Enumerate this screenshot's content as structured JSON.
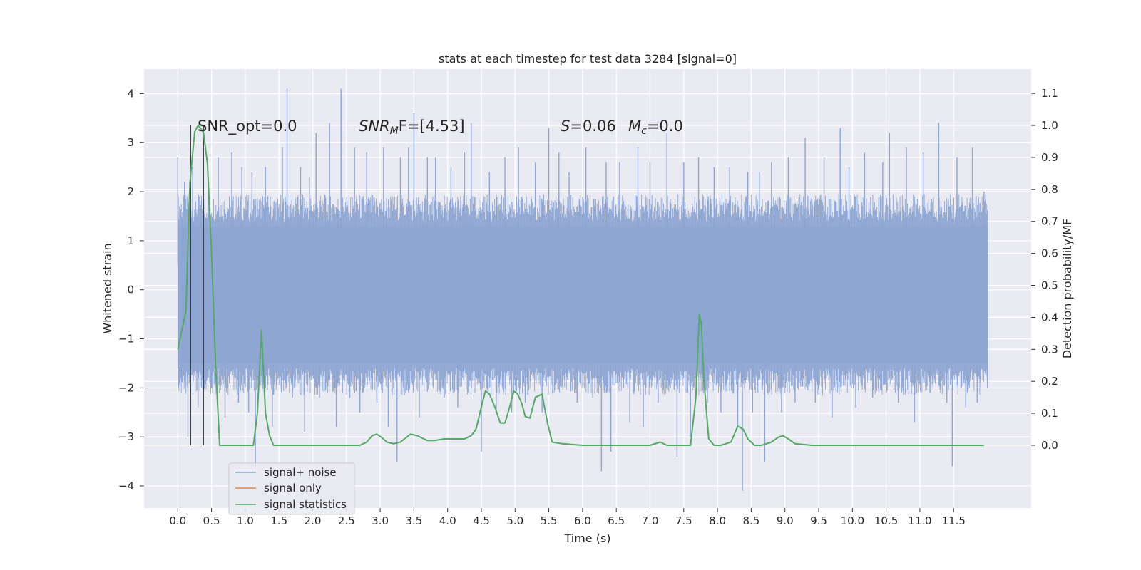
{
  "chart_data": {
    "type": "line",
    "title": "stats at each timestep for test data 3284 [signal=0]",
    "xlabel": "Time (s)",
    "ylabel": "Whitened strain",
    "y2label": "Detection probability/MF",
    "xlim": [
      -0.5,
      12.65
    ],
    "ylim": [
      -4.45,
      4.5
    ],
    "y2lim": [
      -0.196,
      1.176
    ],
    "x_ticks": [
      0.0,
      0.5,
      1.0,
      1.5,
      2.0,
      2.5,
      3.0,
      3.5,
      4.0,
      4.5,
      5.0,
      5.5,
      6.0,
      6.5,
      7.0,
      7.5,
      8.0,
      8.5,
      9.0,
      9.5,
      10.0,
      10.5,
      11.0,
      11.5
    ],
    "x_tick_labels": [
      "0.0",
      "0.5",
      "1.0",
      "1.5",
      "2.0",
      "2.5",
      "3.0",
      "3.5",
      "4.0",
      "4.5",
      "5.0",
      "5.5",
      "6.0",
      "6.5",
      "7.0",
      "7.5",
      "8.0",
      "8.5",
      "9.0",
      "9.5",
      "10.0",
      "10.5",
      "11.0",
      "11.5"
    ],
    "y_ticks": [
      4,
      3,
      2,
      1,
      0,
      -1,
      -2,
      -3,
      -4
    ],
    "y_tick_labels": [
      "4",
      "3",
      "2",
      "1",
      "0",
      "−1",
      "−2",
      "−3",
      "−4"
    ],
    "y2_ticks": [
      1.1,
      1.0,
      0.9,
      0.8,
      0.7,
      0.6,
      0.5,
      0.4,
      0.3,
      0.2,
      0.1,
      0.0
    ],
    "y2_tick_labels": [
      "1.1",
      "1.0",
      "0.9",
      "0.8",
      "0.7",
      "0.6",
      "0.5",
      "0.4",
      "0.3",
      "0.2",
      "0.1",
      "0.0"
    ],
    "grid": true,
    "legend_position": "lower-left",
    "annotations": {
      "snr_opt": "SNR_opt=0.0",
      "snr_mf_sym": "SNR",
      "snr_mf_sub": "M",
      "snr_mf_rest": "F=[4.53]",
      "s_sym": "S",
      "s_rest": "=0.06",
      "mc_sym": "M",
      "mc_sub": "c",
      "mc_rest": "=0.0"
    },
    "vertical_markers_x": [
      0.19,
      0.38
    ],
    "series": [
      {
        "name": "signal+ noise",
        "color": "#8fa6d2",
        "axis": "left",
        "x_range": [
          0.0,
          12.0
        ],
        "envelope_upper": 1.3,
        "envelope_lower": -1.5,
        "spikes": [
          [
            0.0,
            2.7
          ],
          [
            0.05,
            -1.6
          ],
          [
            0.1,
            2.2
          ],
          [
            0.15,
            -3.0
          ],
          [
            0.22,
            2.5
          ],
          [
            0.3,
            -2.4
          ],
          [
            0.45,
            2.2
          ],
          [
            0.5,
            -2.0
          ],
          [
            0.6,
            2.7
          ],
          [
            0.7,
            -2.6
          ],
          [
            0.8,
            2.8
          ],
          [
            0.9,
            -2.3
          ],
          [
            0.95,
            2.5
          ],
          [
            1.05,
            -2.5
          ],
          [
            1.1,
            2.4
          ],
          [
            1.15,
            -3.6
          ],
          [
            1.3,
            2.5
          ],
          [
            1.4,
            -2.8
          ],
          [
            1.55,
            2.9
          ],
          [
            1.62,
            4.1
          ],
          [
            1.7,
            -2.2
          ],
          [
            1.82,
            2.5
          ],
          [
            1.88,
            -2.9
          ],
          [
            1.95,
            2.3
          ],
          [
            2.05,
            3.2
          ],
          [
            2.1,
            -2.2
          ],
          [
            2.25,
            3.4
          ],
          [
            2.35,
            -2.8
          ],
          [
            2.42,
            4.1
          ],
          [
            2.55,
            -2.2
          ],
          [
            2.62,
            2.9
          ],
          [
            2.7,
            -2.5
          ],
          [
            2.8,
            2.8
          ],
          [
            2.95,
            -2.3
          ],
          [
            3.05,
            2.9
          ],
          [
            3.12,
            -2.8
          ],
          [
            3.25,
            -3.5
          ],
          [
            3.3,
            2.7
          ],
          [
            3.42,
            2.9
          ],
          [
            3.5,
            3.6
          ],
          [
            3.58,
            -2.6
          ],
          [
            3.7,
            2.7
          ],
          [
            3.82,
            2.7
          ],
          [
            3.95,
            -2.2
          ],
          [
            4.05,
            2.5
          ],
          [
            4.15,
            -2.4
          ],
          [
            4.25,
            2.8
          ],
          [
            4.35,
            3.4
          ],
          [
            4.5,
            -3.3
          ],
          [
            4.62,
            2.4
          ],
          [
            4.72,
            -2.5
          ],
          [
            4.85,
            2.7
          ],
          [
            4.95,
            -2.5
          ],
          [
            5.05,
            2.9
          ],
          [
            5.15,
            -2.3
          ],
          [
            5.3,
            2.6
          ],
          [
            5.4,
            -2.5
          ],
          [
            5.5,
            3.3
          ],
          [
            5.65,
            2.8
          ],
          [
            5.8,
            2.4
          ],
          [
            5.92,
            -2.3
          ],
          [
            6.05,
            2.9
          ],
          [
            6.15,
            -2.2
          ],
          [
            6.28,
            -3.7
          ],
          [
            6.35,
            2.6
          ],
          [
            6.42,
            -3.3
          ],
          [
            6.55,
            2.6
          ],
          [
            6.7,
            -2.7
          ],
          [
            6.82,
            2.9
          ],
          [
            6.9,
            -2.8
          ],
          [
            7.0,
            2.6
          ],
          [
            7.12,
            -2.3
          ],
          [
            7.25,
            3.2
          ],
          [
            7.4,
            -3.4
          ],
          [
            7.5,
            2.6
          ],
          [
            7.6,
            -3.0
          ],
          [
            7.72,
            2.7
          ],
          [
            7.85,
            -2.3
          ],
          [
            7.95,
            2.5
          ],
          [
            8.05,
            -2.5
          ],
          [
            8.18,
            2.5
          ],
          [
            8.3,
            -2.8
          ],
          [
            8.37,
            -4.1
          ],
          [
            8.45,
            2.4
          ],
          [
            8.52,
            -2.5
          ],
          [
            8.62,
            2.4
          ],
          [
            8.7,
            -3.5
          ],
          [
            8.8,
            2.6
          ],
          [
            8.95,
            -2.5
          ],
          [
            9.05,
            2.7
          ],
          [
            9.15,
            -2.3
          ],
          [
            9.3,
            3.1
          ],
          [
            9.45,
            -2.3
          ],
          [
            9.58,
            2.7
          ],
          [
            9.7,
            -2.6
          ],
          [
            9.82,
            3.3
          ],
          [
            9.95,
            2.5
          ],
          [
            10.05,
            -2.4
          ],
          [
            10.18,
            2.8
          ],
          [
            10.3,
            -2.2
          ],
          [
            10.45,
            2.6
          ],
          [
            10.55,
            3.2
          ],
          [
            10.68,
            -2.3
          ],
          [
            10.8,
            2.9
          ],
          [
            10.92,
            -2.7
          ],
          [
            11.05,
            2.8
          ],
          [
            11.15,
            -2.1
          ],
          [
            11.28,
            3.4
          ],
          [
            11.4,
            -2.3
          ],
          [
            11.48,
            -3.6
          ],
          [
            11.55,
            2.7
          ],
          [
            11.68,
            -2.4
          ],
          [
            11.78,
            2.9
          ],
          [
            11.85,
            -2.3
          ],
          [
            11.95,
            2.0
          ],
          [
            12.0,
            -1.9
          ]
        ]
      },
      {
        "name": "signal only",
        "color": "#dd8452",
        "axis": "left",
        "x": [],
        "y": []
      },
      {
        "name": "signal statistics",
        "color": "#55a868",
        "axis": "right",
        "x": [
          0.0,
          0.12,
          0.18,
          0.25,
          0.3,
          0.38,
          0.44,
          0.5,
          0.56,
          0.62,
          0.8,
          1.0,
          1.12,
          1.18,
          1.24,
          1.3,
          1.36,
          1.42,
          1.5,
          1.8,
          2.2,
          2.5,
          2.7,
          2.8,
          2.88,
          2.95,
          3.02,
          3.1,
          3.2,
          3.3,
          3.45,
          3.55,
          3.7,
          3.8,
          3.95,
          4.1,
          4.25,
          4.35,
          4.42,
          4.5,
          4.56,
          4.62,
          4.7,
          4.78,
          4.85,
          4.92,
          4.98,
          5.04,
          5.1,
          5.15,
          5.22,
          5.3,
          5.4,
          5.48,
          5.55,
          5.7,
          6.0,
          6.5,
          7.0,
          7.15,
          7.25,
          7.4,
          7.6,
          7.68,
          7.73,
          7.76,
          7.8,
          7.87,
          7.95,
          8.05,
          8.2,
          8.3,
          8.38,
          8.45,
          8.55,
          8.65,
          8.8,
          8.9,
          8.97,
          9.05,
          9.15,
          9.4,
          10.0,
          11.0,
          11.95
        ],
        "y": [
          0.3,
          0.42,
          0.82,
          0.98,
          1.0,
          0.98,
          0.88,
          0.6,
          0.25,
          0.0,
          0.0,
          0.0,
          0.0,
          0.1,
          0.36,
          0.1,
          0.03,
          0.0,
          0.0,
          0.0,
          0.0,
          0.0,
          0.0,
          0.01,
          0.03,
          0.035,
          0.025,
          0.01,
          0.005,
          0.01,
          0.035,
          0.03,
          0.015,
          0.015,
          0.02,
          0.02,
          0.02,
          0.03,
          0.05,
          0.12,
          0.17,
          0.16,
          0.12,
          0.07,
          0.07,
          0.12,
          0.17,
          0.16,
          0.13,
          0.09,
          0.085,
          0.15,
          0.16,
          0.07,
          0.01,
          0.005,
          0.0,
          0.0,
          0.0,
          0.01,
          0.0,
          0.0,
          0.0,
          0.15,
          0.41,
          0.38,
          0.2,
          0.02,
          0.0,
          0.0,
          0.01,
          0.06,
          0.05,
          0.02,
          0.0,
          0.0,
          0.01,
          0.025,
          0.03,
          0.02,
          0.005,
          0.0,
          0.0,
          0.0,
          0.0
        ]
      }
    ]
  }
}
